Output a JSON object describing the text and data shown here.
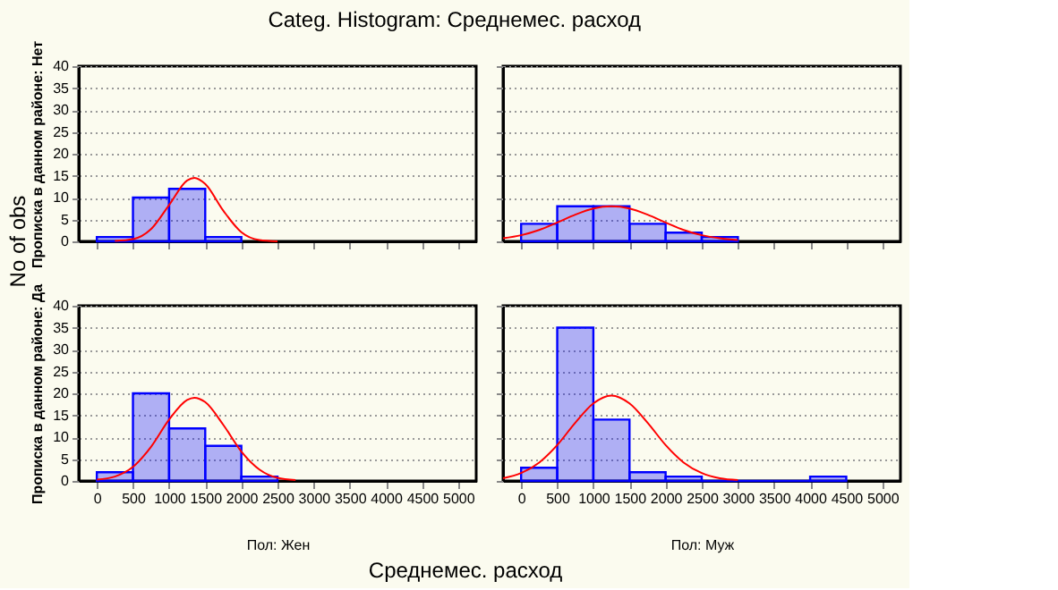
{
  "chart_data": [
    {
      "type": "histogram",
      "title": "Categ. Histogram: Среднемес. расход",
      "annotations": [
        "No of obs",
        "Среднемес. расход"
      ],
      "ylabel": "Прописка в данном районе: Нет",
      "bins": [
        0,
        500,
        1000,
        1500,
        2000
      ],
      "values": [
        1,
        10,
        12,
        1
      ],
      "color": "#0000ff",
      "xlim": [
        -250,
        5250
      ],
      "ylim": [
        0,
        40
      ],
      "xticks": [
        0,
        500,
        1000,
        1500,
        2000,
        2500,
        3000,
        3500,
        4000,
        4500,
        5000
      ],
      "yticks": [
        0,
        5,
        10,
        15,
        20,
        25,
        30,
        35,
        40
      ],
      "grid": "y",
      "tick_labels": "y",
      "series": [
        {
          "type": "line",
          "color": "#ff0000",
          "x": [
            250,
            500,
            750,
            1000,
            1250,
            1350,
            1500,
            1750,
            2000,
            2250,
            2500
          ],
          "values": [
            0.1,
            0.5,
            2.8,
            8.3,
            13.9,
            14.5,
            13.1,
            7.0,
            2.1,
            0.3,
            0
          ]
        }
      ]
    },
    {
      "type": "histogram",
      "bins": [
        0,
        500,
        1000,
        1500,
        2000,
        2500,
        3000
      ],
      "values": [
        4,
        8,
        8,
        4,
        2,
        1
      ],
      "color": "#0000ff",
      "xlim": [
        -250,
        5250
      ],
      "ylim": [
        0,
        40
      ],
      "xticks": [
        0,
        500,
        1000,
        1500,
        2000,
        2500,
        3000,
        3500,
        4000,
        4500,
        5000
      ],
      "yticks": [
        0,
        5,
        10,
        15,
        20,
        25,
        30,
        35,
        40
      ],
      "grid": "y",
      "tick_labels": false,
      "series": [
        {
          "type": "line",
          "color": "#ff0000",
          "x": [
            -250,
            0,
            250,
            500,
            750,
            1000,
            1250,
            1500,
            1750,
            2000,
            2250,
            2500,
            2750,
            3000
          ],
          "values": [
            0.7,
            1.4,
            2.6,
            4.3,
            6.1,
            7.5,
            8,
            7.5,
            6.1,
            4.3,
            2.6,
            1.4,
            0.7,
            0.3
          ]
        }
      ]
    },
    {
      "type": "histogram",
      "ylabel": "Прописка в данном районе: Да",
      "xlabel": "Пол: Жен",
      "bins": [
        0,
        500,
        1000,
        1500,
        2000,
        2500
      ],
      "values": [
        2,
        20,
        12,
        8,
        1
      ],
      "color": "#0000ff",
      "xlim": [
        -250,
        5250
      ],
      "ylim": [
        0,
        40
      ],
      "xticks": [
        0,
        500,
        1000,
        1500,
        2000,
        2500,
        3000,
        3500,
        4000,
        4500,
        5000
      ],
      "yticks": [
        0,
        5,
        10,
        15,
        20,
        25,
        30,
        35,
        40
      ],
      "grid": "y",
      "series": [
        {
          "type": "line",
          "color": "#ff0000",
          "x": [
            0,
            250,
            500,
            750,
            1000,
            1250,
            1350,
            1500,
            1750,
            2000,
            2250,
            2500,
            2750
          ],
          "values": [
            0.3,
            1.0,
            3.2,
            7.8,
            14.0,
            18.5,
            19,
            18,
            12.8,
            6.7,
            2.6,
            0.7,
            0.2
          ]
        }
      ]
    },
    {
      "type": "histogram",
      "xlabel": "Пол: Муж",
      "bins": [
        0,
        500,
        1000,
        1500,
        2000,
        2500,
        3000,
        3500,
        4000,
        4500
      ],
      "values": [
        3,
        35,
        14,
        2,
        1,
        0,
        0,
        0,
        1
      ],
      "color": "#0000ff",
      "xlim": [
        -250,
        5250
      ],
      "ylim": [
        0,
        40
      ],
      "xticks": [
        0,
        500,
        1000,
        1500,
        2000,
        2500,
        3000,
        3500,
        4000,
        4500,
        5000
      ],
      "yticks": [
        0,
        5,
        10,
        15,
        20,
        25,
        30,
        35,
        40
      ],
      "grid": "y",
      "tick_labels": "x",
      "series": [
        {
          "type": "line",
          "color": "#ff0000",
          "x": [
            -250,
            0,
            250,
            500,
            750,
            1000,
            1250,
            1500,
            1750,
            2000,
            2250,
            2500,
            2750,
            3000
          ],
          "values": [
            0.6,
            1.8,
            4.2,
            8.2,
            13.3,
            17.7,
            19.5,
            17.7,
            13.3,
            8.2,
            4.2,
            1.8,
            0.6,
            0.2
          ]
        }
      ]
    }
  ]
}
